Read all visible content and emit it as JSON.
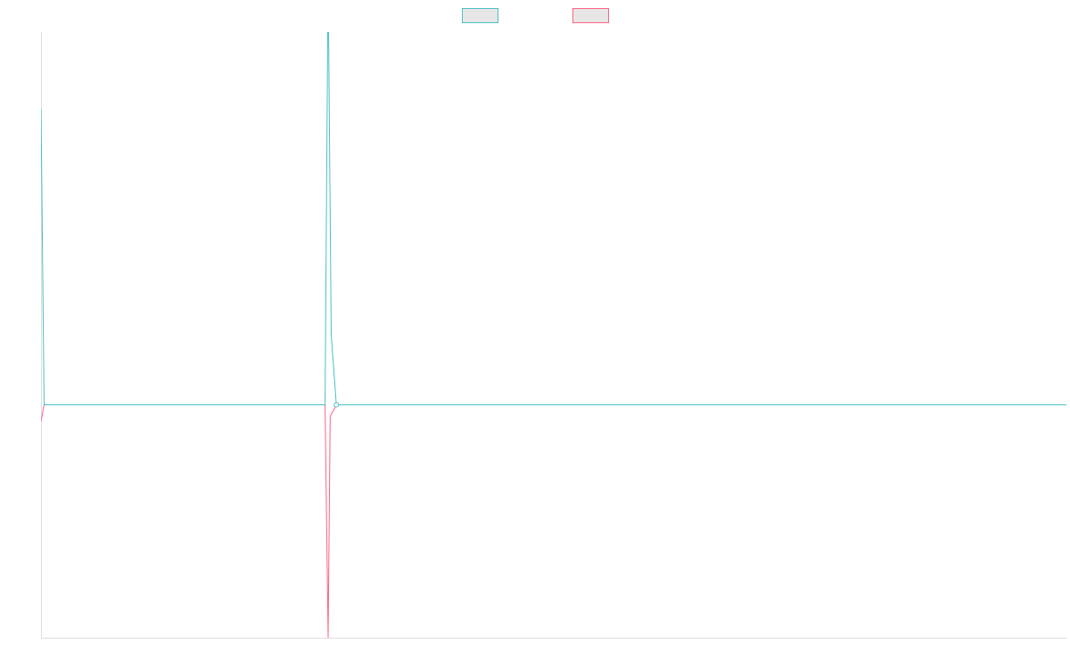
{
  "chart_data": {
    "type": "line",
    "title": "",
    "xlabel": "",
    "ylabel": "",
    "x_domain": [
      0,
      1000
    ],
    "ylim": [
      -100,
      160
    ],
    "grid": false,
    "legend_position": "top-center",
    "series": [
      {
        "color": "#4bc0c0",
        "fill_color": "#e6e6e6",
        "points": [
          {
            "x": 0,
            "y": 127
          },
          {
            "x": 3,
            "y": 0
          },
          {
            "x": 277,
            "y": 0
          },
          {
            "x": 280,
            "y": 185
          },
          {
            "x": 283,
            "y": 30
          },
          {
            "x": 288,
            "y": 0
          },
          {
            "x": 1000,
            "y": 0
          }
        ],
        "markers": [
          {
            "x": 288,
            "y": 0
          }
        ]
      },
      {
        "color": "#ff6384",
        "fill_color": "#e6e6e6",
        "points": [
          {
            "x": 0,
            "y": -7
          },
          {
            "x": 3,
            "y": 0
          },
          {
            "x": 277,
            "y": 0
          },
          {
            "x": 280,
            "y": -100
          },
          {
            "x": 282,
            "y": -5
          },
          {
            "x": 288,
            "y": 0
          },
          {
            "x": 1000,
            "y": 0
          }
        ],
        "markers": []
      }
    ]
  }
}
